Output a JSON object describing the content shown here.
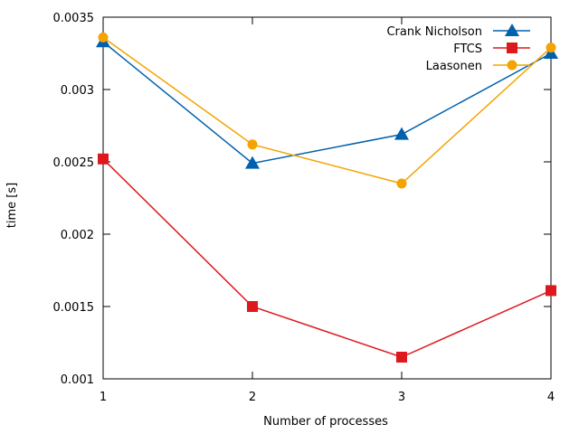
{
  "chart_data": {
    "type": "line",
    "xlabel": "Number of processes",
    "ylabel": "time [s]",
    "x": [
      1,
      2,
      3,
      4
    ],
    "xticks": [
      "1",
      "2",
      "3",
      "4"
    ],
    "xlim": [
      1,
      4
    ],
    "ylim": [
      0.001,
      0.0035
    ],
    "yticks": [
      0.001,
      0.0015,
      0.002,
      0.0025,
      0.003,
      0.0035
    ],
    "ytick_labels": [
      "0.001",
      "0.0015",
      "0.002",
      "0.0025",
      "0.003",
      "0.0035"
    ],
    "grid": false,
    "legend_position": "top-right",
    "series": [
      {
        "name": "Crank Nicholson",
        "color": "#0060ad",
        "marker": "triangle",
        "values": [
          0.00333,
          0.00249,
          0.00269,
          0.00325
        ]
      },
      {
        "name": "FTCS",
        "color": "#dd181f",
        "marker": "square",
        "values": [
          0.00252,
          0.0015,
          0.00115,
          0.00161
        ]
      },
      {
        "name": "Laasonen",
        "color": "#f4a300",
        "marker": "circle",
        "values": [
          0.00336,
          0.00262,
          0.00235,
          0.00329
        ]
      }
    ]
  }
}
